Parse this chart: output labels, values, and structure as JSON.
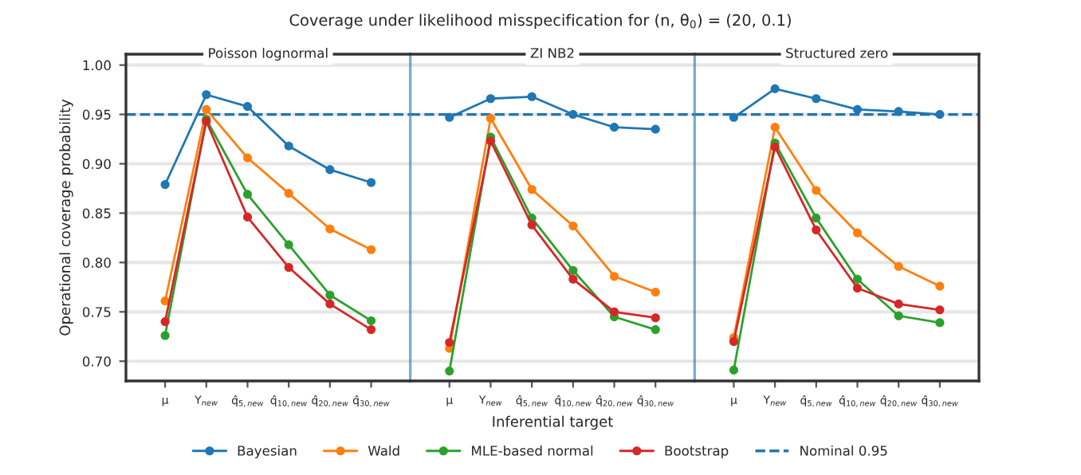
{
  "chart_data": [
    {
      "type": "line",
      "title": "Poisson lognormal",
      "ylabel": "Operational coverage probability",
      "annotations": [
        "Coverage under likelihood misspecification for (n, θ$_{0}$) = (20, 0.1)"
      ],
      "categories": [
        "μ",
        "Y$_{new}$",
        "q̂$_{5,new}$",
        "q̂$_{10,new}$",
        "q̂$_{20,new}$",
        "q̂$_{30,new}$"
      ],
      "series": [
        {
          "name": "Bayesian",
          "color": "#1f77b4",
          "values": [
            0.879,
            0.97,
            0.958,
            0.918,
            0.894,
            0.881
          ]
        },
        {
          "name": "Wald",
          "color": "#ff7f0e",
          "values": [
            0.761,
            0.955,
            0.906,
            0.87,
            0.834,
            0.813
          ]
        },
        {
          "name": "MLE-based normal",
          "color": "#2ca02c",
          "values": [
            0.726,
            0.945,
            0.869,
            0.818,
            0.767,
            0.741
          ]
        },
        {
          "name": "Bootstrap",
          "color": "#d62728",
          "values": [
            0.74,
            0.943,
            0.846,
            0.795,
            0.758,
            0.732
          ]
        }
      ],
      "ylim": [
        0.68,
        1.011
      ],
      "yticks": [
        {
          "value": 0.7,
          "label": "0.70"
        },
        {
          "value": 0.75,
          "label": "0.75"
        },
        {
          "value": 0.8,
          "label": "0.80"
        },
        {
          "value": 0.85,
          "label": "0.85"
        },
        {
          "value": 0.9,
          "label": "0.90"
        },
        {
          "value": 0.95,
          "label": "0.95"
        },
        {
          "value": 1.0,
          "label": "1.00"
        }
      ],
      "grid": "y",
      "marker": "circle",
      "legend": "bottom",
      "ref_lines": [
        {
          "axis": "y",
          "value": 0.95,
          "label": "Nominal 0.95",
          "color": "#1f77b4",
          "line_style": "dashed"
        }
      ]
    },
    {
      "type": "line",
      "title": "ZI NB2",
      "xlabel": "Inferential target",
      "categories": [
        "μ",
        "Y$_{new}$",
        "q̂$_{5,new}$",
        "q̂$_{10,new}$",
        "q̂$_{20,new}$",
        "q̂$_{30,new}$"
      ],
      "series": [
        {
          "name": "Bayesian",
          "color": "#1f77b4",
          "values": [
            0.947,
            0.966,
            0.968,
            0.95,
            0.937,
            0.935
          ]
        },
        {
          "name": "Wald",
          "color": "#ff7f0e",
          "values": [
            0.713,
            0.946,
            0.874,
            0.837,
            0.786,
            0.77
          ]
        },
        {
          "name": "MLE-based normal",
          "color": "#2ca02c",
          "values": [
            0.69,
            0.927,
            0.845,
            0.792,
            0.745,
            0.732
          ]
        },
        {
          "name": "Bootstrap",
          "color": "#d62728",
          "values": [
            0.719,
            0.923,
            0.838,
            0.783,
            0.75,
            0.744
          ]
        }
      ],
      "ylim": [
        0.68,
        1.011
      ],
      "yticks": [
        {
          "value": 0.7,
          "label": "0.70"
        },
        {
          "value": 0.75,
          "label": "0.75"
        },
        {
          "value": 0.8,
          "label": "0.80"
        },
        {
          "value": 0.85,
          "label": "0.85"
        },
        {
          "value": 0.9,
          "label": "0.90"
        },
        {
          "value": 0.95,
          "label": "0.95"
        },
        {
          "value": 1.0,
          "label": "1.00"
        }
      ],
      "ref_lines": [
        {
          "axis": "y",
          "value": 0.95,
          "color": "#1f77b4",
          "line_style": "dashed"
        }
      ],
      "grid": "y",
      "marker": "circle",
      "legend": "bottom",
      "tick_labels": "x"
    },
    {
      "type": "line",
      "title": "Structured zero",
      "categories": [
        "μ",
        "Y$_{new}$",
        "q̂$_{5,new}$",
        "q̂$_{10,new}$",
        "q̂$_{20,new}$",
        "q̂$_{30,new}$"
      ],
      "series": [
        {
          "name": "Bayesian",
          "color": "#1f77b4",
          "values": [
            0.947,
            0.976,
            0.966,
            0.955,
            0.953,
            0.95
          ]
        },
        {
          "name": "Wald",
          "color": "#ff7f0e",
          "values": [
            0.724,
            0.937,
            0.873,
            0.83,
            0.796,
            0.776
          ]
        },
        {
          "name": "MLE-based normal",
          "color": "#2ca02c",
          "values": [
            0.691,
            0.921,
            0.845,
            0.783,
            0.746,
            0.739
          ]
        },
        {
          "name": "Bootstrap",
          "color": "#d62728",
          "values": [
            0.72,
            0.917,
            0.833,
            0.774,
            0.758,
            0.752
          ]
        }
      ],
      "ylim": [
        0.68,
        1.011
      ],
      "yticks": [
        {
          "value": 0.7,
          "label": "0.70"
        },
        {
          "value": 0.75,
          "label": "0.75"
        },
        {
          "value": 0.8,
          "label": "0.80"
        },
        {
          "value": 0.85,
          "label": "0.85"
        },
        {
          "value": 0.9,
          "label": "0.90"
        },
        {
          "value": 0.95,
          "label": "0.95"
        },
        {
          "value": 1.0,
          "label": "1.00"
        }
      ],
      "ref_lines": [
        {
          "axis": "y",
          "value": 0.95,
          "color": "#1f77b4",
          "line_style": "dashed"
        }
      ],
      "grid": "y",
      "marker": "circle",
      "legend": "bottom",
      "tick_labels": "x"
    }
  ]
}
